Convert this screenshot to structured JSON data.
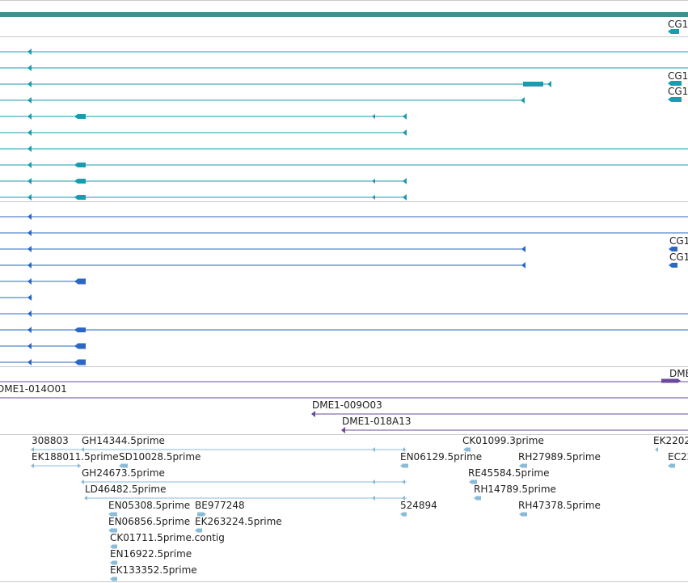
{
  "colors": {
    "background": "#ffffff",
    "divider": "#c8c8c8",
    "scaffold_bar": "#3f8f8c",
    "transcript_teal": "#1a9bb0",
    "transcript_blue": "#2c67c6",
    "clone_purple": "#6b4a9e",
    "est_lightblue": "#8bbbd8",
    "label_text": "#222222"
  },
  "tracks": {
    "gene_labels": [
      "CG1",
      "CG1",
      "CG1",
      "CG1",
      "CG1",
      "DME"
    ],
    "clone_labels": [
      "DME1-014O01",
      "DME1-009O03",
      "DME1-018A13"
    ],
    "est_labels": [
      "308803",
      "GH14344.5prime",
      "CK01099.3prime",
      "EK2202",
      "EK188011.5prime",
      "SD10028.5prime",
      "EN06129.5prime",
      "RH27989.5prime",
      "EC22",
      "GH24673.5prime",
      "RE45584.5prime",
      "LD46482.5prime",
      "RH14789.5prime",
      "EN05308.5prime",
      "BE977248",
      "524894",
      "RH47378.5prime",
      "EN06856.5prime",
      "EK263224.5prime",
      "CK01711.5prime.contig",
      "EN16922.5prime",
      "EK133352.5prime"
    ]
  }
}
